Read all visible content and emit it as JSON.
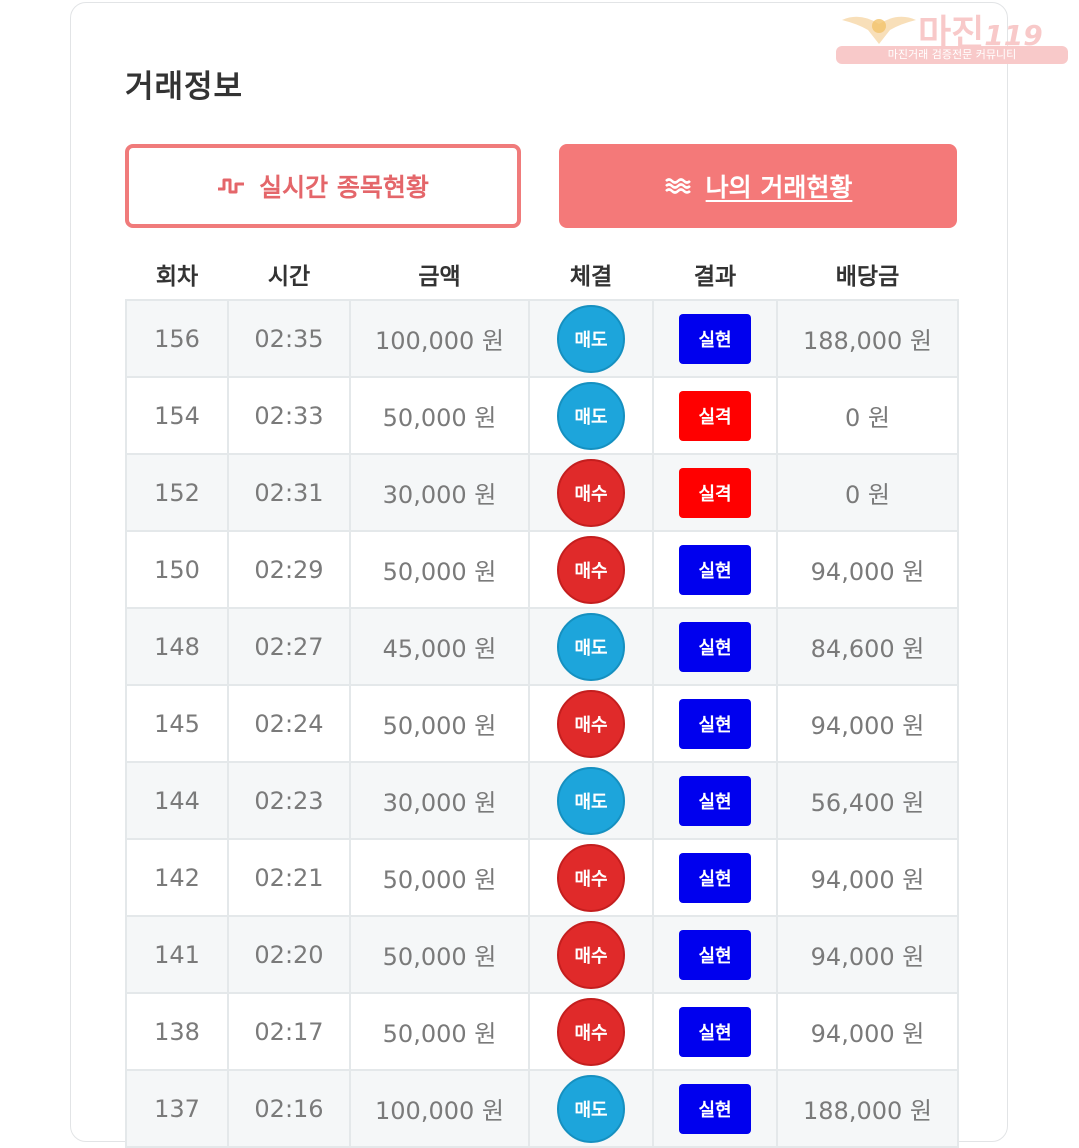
{
  "page_title": "거래정보",
  "tabs": [
    {
      "label": "실시간 종목현황",
      "icon": "pulse-wave-icon"
    },
    {
      "label": "나의 거래현황",
      "icon": "waves-icon"
    }
  ],
  "watermark": {
    "brand": "마진",
    "brand_num": "119",
    "tagline": "마진거래 검증전문 커뮤니티"
  },
  "colors": {
    "sell": "#1da5db",
    "buy": "#e02a2a",
    "success": "#0000ee",
    "fail": "#ff0000",
    "accent": "#f47979"
  },
  "table": {
    "headers": [
      "회차",
      "시간",
      "금액",
      "체결",
      "결과",
      "배당금"
    ],
    "rows": [
      {
        "round": "156",
        "time": "02:35",
        "amount": "100,000 원",
        "side": "매도",
        "result": "실현",
        "payout": "188,000 원"
      },
      {
        "round": "154",
        "time": "02:33",
        "amount": "50,000 원",
        "side": "매도",
        "result": "실격",
        "payout": "0 원"
      },
      {
        "round": "152",
        "time": "02:31",
        "amount": "30,000 원",
        "side": "매수",
        "result": "실격",
        "payout": "0 원"
      },
      {
        "round": "150",
        "time": "02:29",
        "amount": "50,000 원",
        "side": "매수",
        "result": "실현",
        "payout": "94,000 원"
      },
      {
        "round": "148",
        "time": "02:27",
        "amount": "45,000 원",
        "side": "매도",
        "result": "실현",
        "payout": "84,600 원"
      },
      {
        "round": "145",
        "time": "02:24",
        "amount": "50,000 원",
        "side": "매수",
        "result": "실현",
        "payout": "94,000 원"
      },
      {
        "round": "144",
        "time": "02:23",
        "amount": "30,000 원",
        "side": "매도",
        "result": "실현",
        "payout": "56,400 원"
      },
      {
        "round": "142",
        "time": "02:21",
        "amount": "50,000 원",
        "side": "매수",
        "result": "실현",
        "payout": "94,000 원"
      },
      {
        "round": "141",
        "time": "02:20",
        "amount": "50,000 원",
        "side": "매수",
        "result": "실현",
        "payout": "94,000 원"
      },
      {
        "round": "138",
        "time": "02:17",
        "amount": "50,000 원",
        "side": "매수",
        "result": "실현",
        "payout": "94,000 원"
      },
      {
        "round": "137",
        "time": "02:16",
        "amount": "100,000 원",
        "side": "매도",
        "result": "실현",
        "payout": "188,000 원"
      }
    ]
  }
}
